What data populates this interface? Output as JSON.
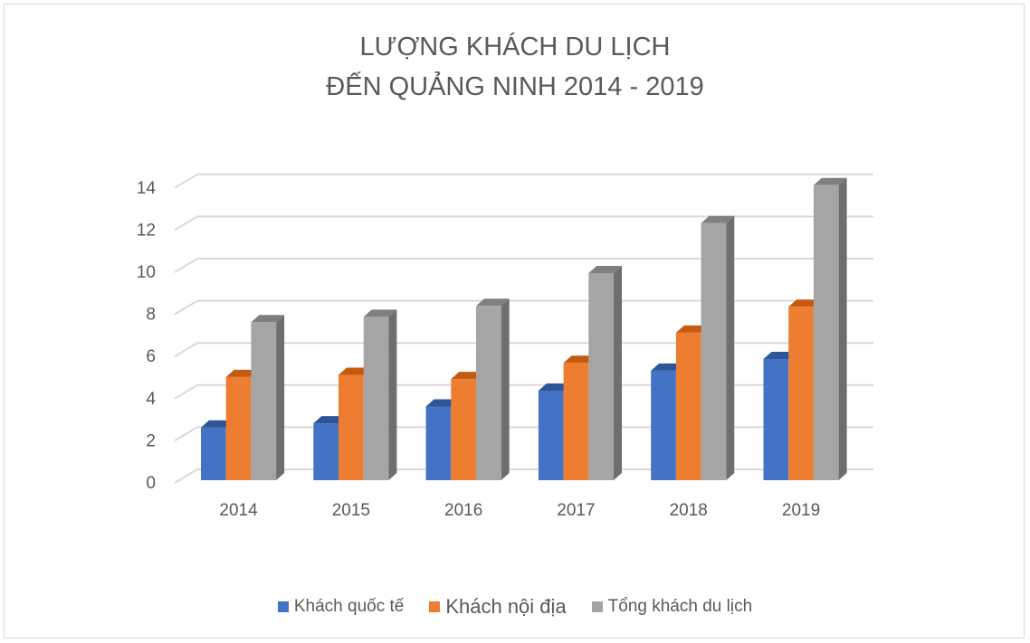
{
  "chart_data": {
    "type": "bar",
    "title": [
      "LƯỢNG KHÁCH DU LỊCH",
      "ĐẾN QUẢNG NINH 2014 - 2019"
    ],
    "categories": [
      "2014",
      "2015",
      "2016",
      "2017",
      "2018",
      "2019"
    ],
    "series": [
      {
        "name": "Khách quốc tế",
        "color": "#4472c4",
        "top": "#2f5597",
        "values": [
          2.5,
          2.7,
          3.5,
          4.25,
          5.2,
          5.75
        ]
      },
      {
        "name": "Khách nội địa",
        "color": "#ed7d31",
        "top": "#c55a11",
        "values": [
          4.9,
          5.0,
          4.8,
          5.57,
          7.0,
          8.23
        ]
      },
      {
        "name": "Tổng khách du lịch",
        "color": "#a5a5a5",
        "top": "#7f7f7f",
        "side": "#6e6e6e",
        "values": [
          7.5,
          7.75,
          8.27,
          9.83,
          12.2,
          14.0
        ]
      }
    ],
    "yticks": [
      "0",
      "2",
      "4",
      "6",
      "8",
      "10",
      "12",
      "14"
    ],
    "ylim": [
      0,
      14
    ],
    "xlabel": "",
    "ylabel": "",
    "grid": true,
    "legend_position": "bottom"
  }
}
